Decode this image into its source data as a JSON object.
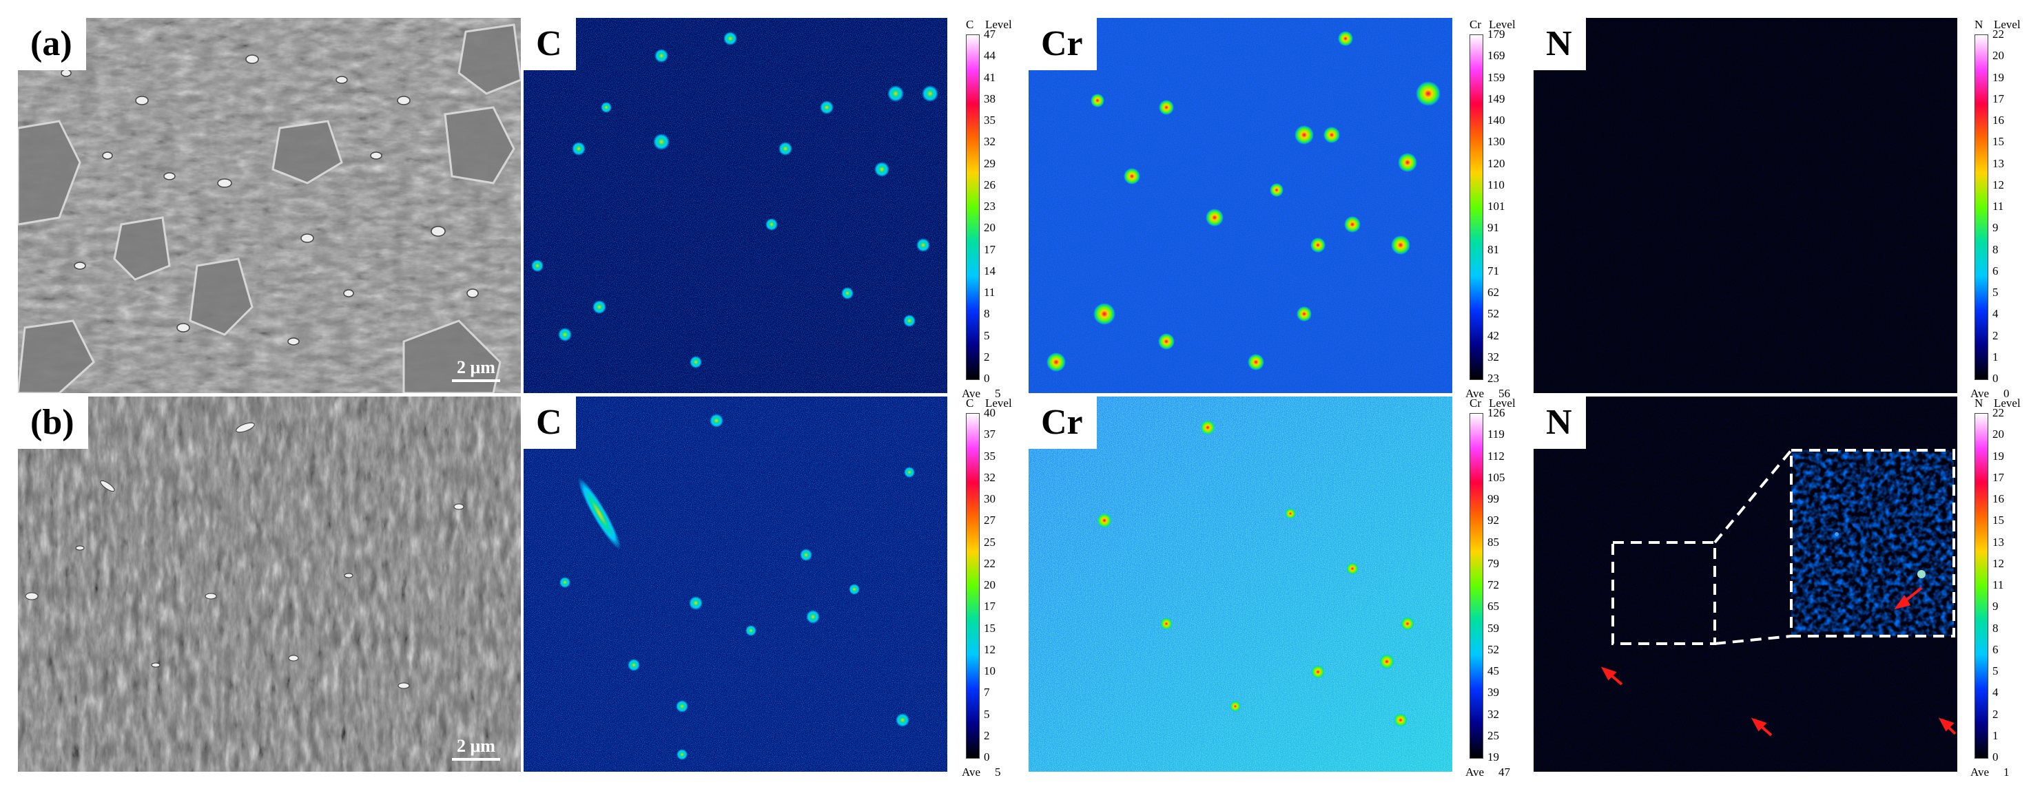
{
  "rows": [
    {
      "sem": {
        "label": "(a)",
        "scale": "2 μm"
      },
      "maps": [
        {
          "label": "C",
          "element": "C",
          "level": "Level",
          "ticks": [
            "47",
            "44",
            "41",
            "38",
            "35",
            "32",
            "29",
            "26",
            "23",
            "20",
            "17",
            "14",
            "11",
            "8",
            "5",
            "2",
            "0"
          ],
          "ave_label": "Ave",
          "ave": "5"
        },
        {
          "label": "Cr",
          "element": "Cr",
          "level": "Level",
          "ticks": [
            "179",
            "169",
            "159",
            "149",
            "140",
            "130",
            "120",
            "110",
            "101",
            "91",
            "81",
            "71",
            "62",
            "52",
            "42",
            "32",
            "23"
          ],
          "ave_label": "Ave",
          "ave": "56"
        },
        {
          "label": "N",
          "element": "N",
          "level": "Level",
          "ticks": [
            "22",
            "20",
            "19",
            "17",
            "16",
            "15",
            "13",
            "12",
            "11",
            "9",
            "8",
            "6",
            "5",
            "4",
            "2",
            "1",
            "0"
          ],
          "ave_label": "Ave",
          "ave": "0"
        }
      ]
    },
    {
      "sem": {
        "label": "(b)",
        "scale": "2 μm"
      },
      "maps": [
        {
          "label": "C",
          "element": "C",
          "level": "Level",
          "ticks": [
            "40",
            "37",
            "35",
            "32",
            "30",
            "27",
            "25",
            "22",
            "20",
            "17",
            "15",
            "12",
            "10",
            "7",
            "5",
            "2",
            "0"
          ],
          "ave_label": "Ave",
          "ave": "5"
        },
        {
          "label": "Cr",
          "element": "Cr",
          "level": "Level",
          "ticks": [
            "126",
            "119",
            "112",
            "105",
            "99",
            "92",
            "85",
            "79",
            "72",
            "65",
            "59",
            "52",
            "45",
            "39",
            "32",
            "25",
            "19"
          ],
          "ave_label": "Ave",
          "ave": "47"
        },
        {
          "label": "N",
          "element": "N",
          "level": "Level",
          "ticks": [
            "22",
            "20",
            "19",
            "17",
            "16",
            "15",
            "13",
            "12",
            "11",
            "9",
            "8",
            "6",
            "5",
            "4",
            "2",
            "1",
            "0"
          ],
          "ave_label": "Ave",
          "ave": "1"
        }
      ]
    }
  ],
  "colors": {
    "map_background": "#050820",
    "colormap": [
      "#000000",
      "#00008b",
      "#0033ff",
      "#00c8ff",
      "#00e0a0",
      "#60ff00",
      "#ffd400",
      "#ff6a00",
      "#ff0040",
      "#ff40ff",
      "#ffffff"
    ]
  }
}
